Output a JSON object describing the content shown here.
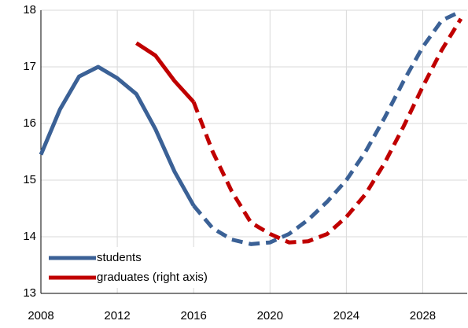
{
  "chart_data": {
    "type": "line",
    "x": [
      2008,
      2009,
      2010,
      2011,
      2012,
      2013,
      2014,
      2015,
      2016,
      2017,
      2018,
      2019,
      2020,
      2021,
      2022,
      2023,
      2024,
      2025,
      2026,
      2027,
      2028,
      2029,
      2030
    ],
    "series": [
      {
        "name": "students",
        "color": "#3b6196",
        "values": [
          15.45,
          16.25,
          16.83,
          17.0,
          16.8,
          16.52,
          15.9,
          15.15,
          14.55,
          null,
          null,
          null,
          null,
          null,
          null,
          null,
          null,
          null,
          null,
          null,
          null,
          null,
          null
        ],
        "dashed_values": [
          null,
          null,
          null,
          null,
          null,
          null,
          null,
          null,
          14.55,
          14.15,
          13.95,
          13.87,
          13.9,
          14.05,
          14.3,
          14.62,
          15.0,
          15.5,
          16.1,
          16.75,
          17.35,
          17.82,
          17.98
        ]
      },
      {
        "name": "graduates (right axis)",
        "color": "#c00000",
        "values": [
          null,
          null,
          null,
          null,
          null,
          17.42,
          17.2,
          16.75,
          16.38,
          null,
          null,
          null,
          null,
          null,
          null,
          null,
          null,
          null,
          null,
          null,
          null,
          null,
          null
        ],
        "dashed_values": [
          null,
          null,
          null,
          null,
          null,
          null,
          null,
          null,
          16.38,
          15.5,
          14.8,
          14.25,
          14.05,
          13.9,
          13.92,
          14.05,
          14.35,
          14.75,
          15.3,
          15.95,
          16.65,
          17.3,
          17.85
        ]
      }
    ],
    "xlim": [
      2008,
      2030
    ],
    "xticks": [
      2008,
      2012,
      2016,
      2020,
      2024,
      2028
    ],
    "ylim": [
      13,
      18
    ],
    "yticks": [
      13,
      14,
      15,
      16,
      17,
      18
    ],
    "grid": true,
    "legend": "lower left"
  }
}
